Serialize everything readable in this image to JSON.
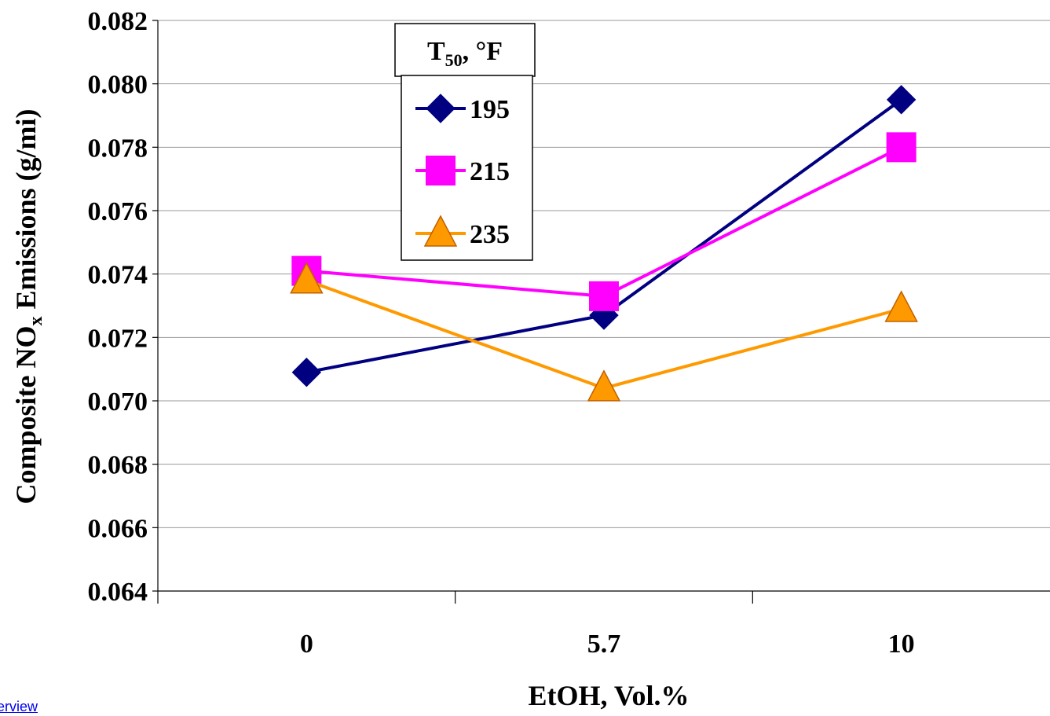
{
  "chart_data": {
    "type": "line",
    "categories": [
      "0",
      "5.7",
      "10"
    ],
    "xlabel": "EtOH, Vol.%",
    "ylabel": {
      "prefix": "Composite NO",
      "subscript": "x",
      "suffix": " Emissions (g/mi)"
    },
    "ylim": [
      0.064,
      0.082
    ],
    "yticks": [
      "0.064",
      "0.066",
      "0.068",
      "0.070",
      "0.072",
      "0.074",
      "0.076",
      "0.078",
      "0.080",
      "0.082"
    ],
    "grid": "horizontal",
    "legend": {
      "placement": "top-left",
      "title": {
        "main": "T",
        "subscript": "50",
        "suffix": ", °F"
      }
    },
    "series": [
      {
        "name": "195",
        "marker": "diamond",
        "color": "#000080",
        "values": [
          0.0709,
          0.0727,
          0.0795
        ]
      },
      {
        "name": "215",
        "marker": "square",
        "color": "#ff00ff",
        "values": [
          0.0741,
          0.0733,
          0.078
        ]
      },
      {
        "name": "235",
        "marker": "triangle",
        "color": "#ff9900",
        "values": [
          0.0738,
          0.0704,
          0.0729
        ]
      }
    ]
  },
  "footer": {
    "link_text": "erview"
  }
}
